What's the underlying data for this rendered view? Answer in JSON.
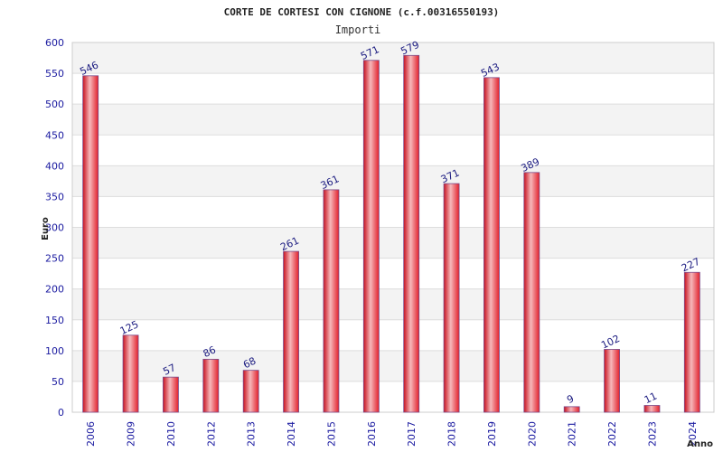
{
  "chart_data": {
    "type": "bar",
    "title": "CORTE DE CORTESI CON CIGNONE (c.f.00316550193)",
    "subtitle": "Importi",
    "xlabel": "Anno",
    "ylabel": "Euro",
    "categories": [
      "2006",
      "2009",
      "2010",
      "2012",
      "2013",
      "2014",
      "2015",
      "2016",
      "2017",
      "2018",
      "2019",
      "2020",
      "2021",
      "2022",
      "2023",
      "2024"
    ],
    "values": [
      546,
      125,
      57,
      86,
      68,
      261,
      361,
      571,
      579,
      371,
      543,
      389,
      9,
      102,
      11,
      227
    ],
    "ylim": [
      0,
      600
    ],
    "yticks": [
      0,
      50,
      100,
      150,
      200,
      250,
      300,
      350,
      400,
      450,
      500,
      550,
      600
    ],
    "grid": true,
    "colors": {
      "bar": "#e8232e",
      "bar_highlight": "#f5b5b8",
      "bar_edge": "#7a4a8a",
      "band": "#f3f3f3",
      "grid": "#dddddd",
      "tick_text": "#1a1aa0"
    }
  }
}
